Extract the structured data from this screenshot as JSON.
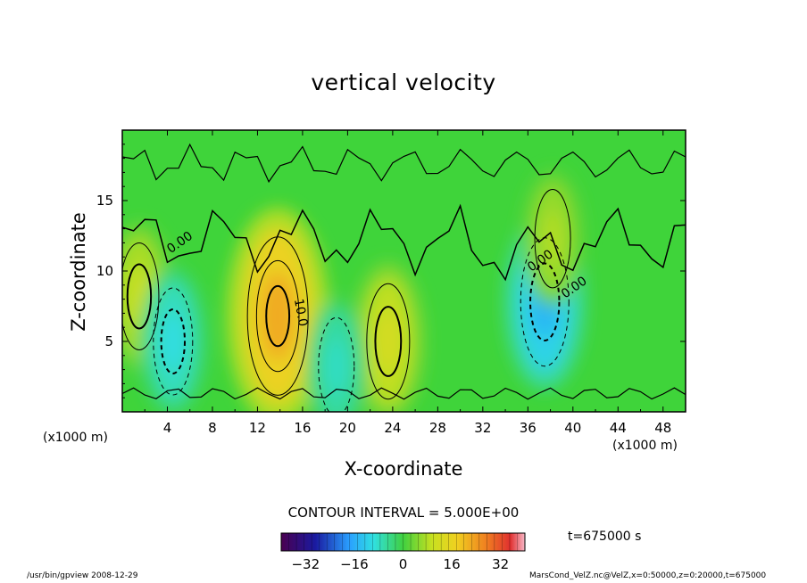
{
  "header": {
    "title": "vertical velocity"
  },
  "chart_data": {
    "type": "heatmap",
    "title": "vertical velocity",
    "xlabel": "X-coordinate",
    "ylabel": "Z-coordinate",
    "x_unit_left": "(x1000 m)",
    "x_unit_right": "(x1000 m)",
    "xlim": [
      0,
      50
    ],
    "ylim": [
      0,
      20
    ],
    "xticks": [
      4,
      8,
      12,
      16,
      20,
      24,
      28,
      32,
      36,
      40,
      44,
      48
    ],
    "yticks": [
      5,
      10,
      15
    ],
    "contour_interval_label": "CONTOUR INTERVAL = 5.000E+00",
    "contour_labels": [
      {
        "text": "0.00",
        "x": 5.3,
        "z": 11.8
      },
      {
        "text": "10.0",
        "x": 15.5,
        "z": 7.0
      },
      {
        "text": "0.00",
        "x": 40.3,
        "z": 8.6
      },
      {
        "text": "0.00",
        "x": 37.3,
        "z": 10.5
      }
    ],
    "features": [
      {
        "x": 13.8,
        "z": 6.8,
        "value": 22
      },
      {
        "x": 23.6,
        "z": 5.0,
        "value": 12
      },
      {
        "x": 1.5,
        "z": 8.2,
        "value": 10
      },
      {
        "x": 4.5,
        "z": 5.0,
        "value": -10
      },
      {
        "x": 19.0,
        "z": 3.2,
        "value": -8
      },
      {
        "x": 37.5,
        "z": 7.8,
        "value": -15
      },
      {
        "x": 38.2,
        "z": 12.3,
        "value": 8
      }
    ],
    "colorbar": {
      "min": -40,
      "max": 40,
      "ticks": [
        -32,
        -16,
        0,
        16,
        32
      ]
    },
    "time_label": "t=675000 s"
  },
  "footer": {
    "program": "/usr/bin/gpview   2008-12-29",
    "file": "MarsCond_VelZ.nc@VelZ,x=0:50000,z=0:20000,t=675000"
  }
}
